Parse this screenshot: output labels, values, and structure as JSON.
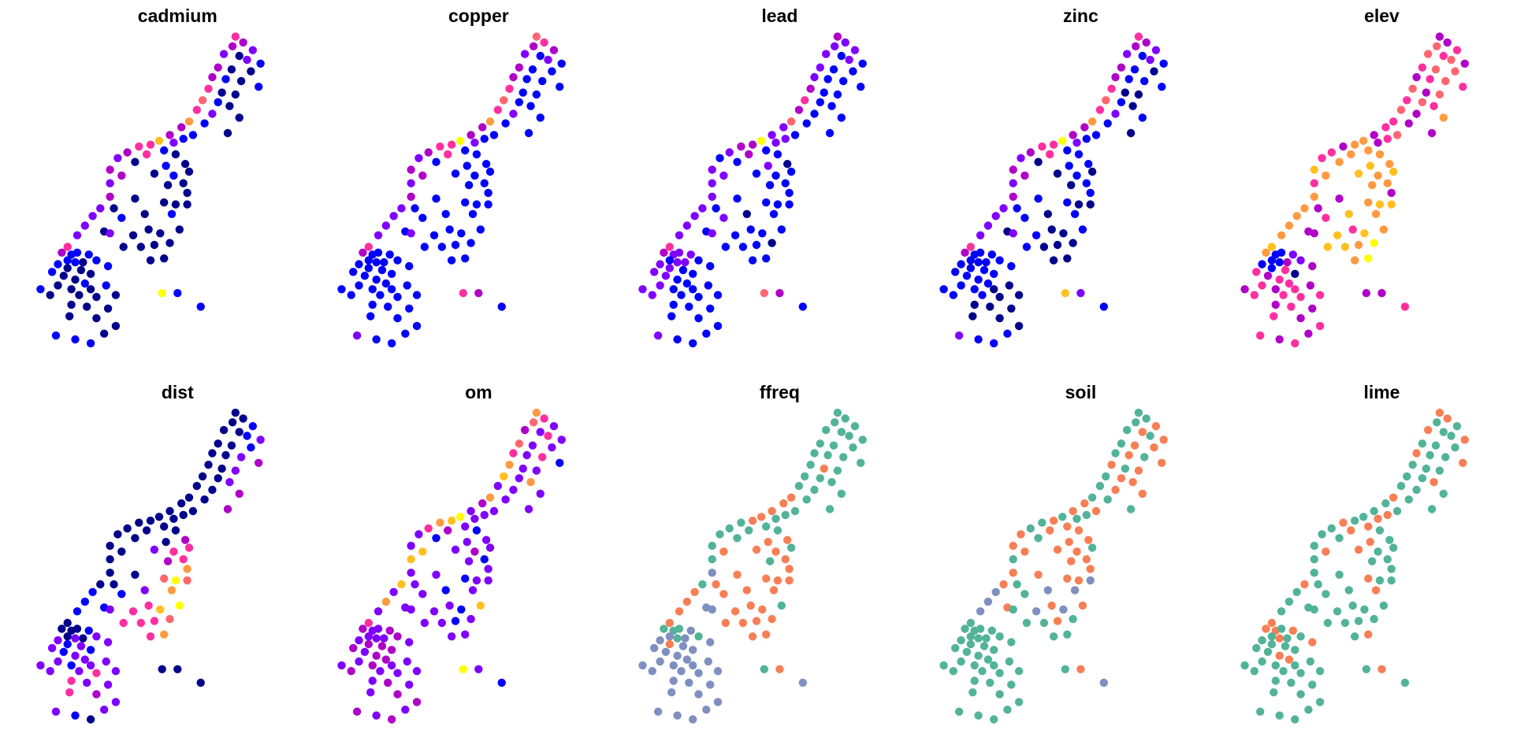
{
  "chart_data": {
    "type": "scatter",
    "layout": "small-multiples 2x5",
    "panels": [
      "cadmium",
      "copper",
      "lead",
      "zinc",
      "elev",
      "dist",
      "om",
      "ffreq",
      "soil",
      "lime"
    ],
    "continuous_palette": [
      "#00008B",
      "#0000FF",
      "#7F00FF",
      "#B000C8",
      "#FF2FA0",
      "#FF6670",
      "#FF9A40",
      "#FFC020",
      "#FFFF00"
    ],
    "factor_palette": [
      "#52B398",
      "#F77F55",
      "#7F8FBF"
    ],
    "factor_panels": [
      "ffreq",
      "soil",
      "lime"
    ],
    "coordinate_units": "map x / y",
    "points": [
      [
        180440,
        333620
      ],
      [
        180520,
        333560
      ],
      [
        180410,
        333520
      ],
      [
        180620,
        333480
      ],
      [
        180320,
        333440
      ],
      [
        180480,
        333420
      ],
      [
        180560,
        333380
      ],
      [
        180700,
        333340
      ],
      [
        180260,
        333300
      ],
      [
        180400,
        333280
      ],
      [
        180600,
        333260
      ],
      [
        180200,
        333200
      ],
      [
        180340,
        333180
      ],
      [
        180500,
        333160
      ],
      [
        180680,
        333100
      ],
      [
        180160,
        333080
      ],
      [
        180300,
        333040
      ],
      [
        180440,
        333020
      ],
      [
        180100,
        332960
      ],
      [
        180260,
        332940
      ],
      [
        180380,
        332900
      ],
      [
        180040,
        332860
      ],
      [
        180200,
        332820
      ],
      [
        180480,
        332780
      ],
      [
        179960,
        332740
      ],
      [
        180120,
        332720
      ],
      [
        179880,
        332680
      ],
      [
        180360,
        332620
      ],
      [
        180000,
        332600
      ],
      [
        179760,
        332600
      ],
      [
        179900,
        332560
      ],
      [
        179650,
        332540
      ],
      [
        179800,
        332520
      ],
      [
        179560,
        332500
      ],
      [
        179440,
        332480
      ],
      [
        179700,
        332440
      ],
      [
        179320,
        332420
      ],
      [
        179520,
        332400
      ],
      [
        179220,
        332360
      ],
      [
        179820,
        332400
      ],
      [
        179400,
        332320
      ],
      [
        179720,
        332280
      ],
      [
        179920,
        332300
      ],
      [
        179140,
        332240
      ],
      [
        179260,
        332180
      ],
      [
        179600,
        332200
      ],
      [
        179800,
        332180
      ],
      [
        179960,
        332220
      ],
      [
        179900,
        332100
      ],
      [
        179740,
        332080
      ],
      [
        179140,
        332100
      ],
      [
        179940,
        332000
      ],
      [
        179140,
        331960
      ],
      [
        179400,
        331940
      ],
      [
        179700,
        331900
      ],
      [
        179820,
        331880
      ],
      [
        179940,
        331880
      ],
      [
        179040,
        331840
      ],
      [
        179180,
        331840
      ],
      [
        178960,
        331760
      ],
      [
        179260,
        331740
      ],
      [
        179500,
        331780
      ],
      [
        179780,
        331780
      ],
      [
        178880,
        331660
      ],
      [
        179080,
        331600
      ],
      [
        179380,
        331560
      ],
      [
        179540,
        331620
      ],
      [
        179660,
        331580
      ],
      [
        179860,
        331620
      ],
      [
        178800,
        331560
      ],
      [
        179140,
        331580
      ],
      [
        179280,
        331440
      ],
      [
        179460,
        331440
      ],
      [
        179600,
        331460
      ],
      [
        179700,
        331320
      ],
      [
        179560,
        331300
      ],
      [
        179760,
        331480
      ],
      [
        178700,
        331440
      ],
      [
        178640,
        331380
      ],
      [
        178740,
        331360
      ],
      [
        178800,
        331380
      ],
      [
        178920,
        331360
      ],
      [
        178700,
        331300
      ],
      [
        178780,
        331280
      ],
      [
        178860,
        331280
      ],
      [
        179000,
        331300
      ],
      [
        178600,
        331260
      ],
      [
        178700,
        331220
      ],
      [
        178840,
        331200
      ],
      [
        178940,
        331160
      ],
      [
        179120,
        331240
      ],
      [
        178540,
        331180
      ],
      [
        178660,
        331140
      ],
      [
        178780,
        331100
      ],
      [
        178880,
        331060
      ],
      [
        178420,
        331000
      ],
      [
        178600,
        331040
      ],
      [
        178740,
        331000
      ],
      [
        178940,
        331000
      ],
      [
        179100,
        331040
      ],
      [
        178520,
        330940
      ],
      [
        178820,
        330940
      ],
      [
        179000,
        330920
      ],
      [
        179200,
        330940
      ],
      [
        178740,
        330840
      ],
      [
        178900,
        330820
      ],
      [
        179120,
        330800
      ],
      [
        178720,
        330720
      ],
      [
        179000,
        330700
      ],
      [
        179200,
        330620
      ],
      [
        178580,
        330520
      ],
      [
        178780,
        330480
      ],
      [
        178940,
        330440
      ],
      [
        179080,
        330540
      ],
      [
        179680,
        330960
      ],
      [
        179840,
        330960
      ],
      [
        180080,
        330820
      ]
    ],
    "classes": {
      "cadmium": "433220213003101400510420613013172441342001033010002030000202101200000220000004311111011000110011000100000000001110811",
      "copper": "543321213113111411511421613113182441342111133111112131111212111211111221111114311111111111111111111111111111112111431",
      "lead": "322221212112111311411311512112282331231112022111112121111212201211111221111104322212212211122112211121111111112111531",
      "zinc": "433221213103111400510421613013182441342101133010102131100212101201001221000004311111111111111111110011000000002111721",
      "elev": "335454534553454535454536434353463636464667676767664363677636476637476637768687611211321140343443434344443434344343334",
      "dist": "000100120010023002002003000300000000000000300244430600585001126114478124446450000102022121221222212222424224322102000",
      "om": "645232425224241622726222623222282762432112227232127222122722212622217222212224322322232333232332232232222322333232821",
      "ffreq": "000000000000000010000000101001010100000001101110100121111011111121110121111111000220202122222222222222222222222222012",
      "soil": "000101010110101101011011001011000101011101111110110111112102022212121200010000000000000000000000000000000000000000012",
      "lime": "110010010001001000001000100000101011010001001100000000100100001000000000001001110101000000100110000000000000000000010"
    }
  }
}
